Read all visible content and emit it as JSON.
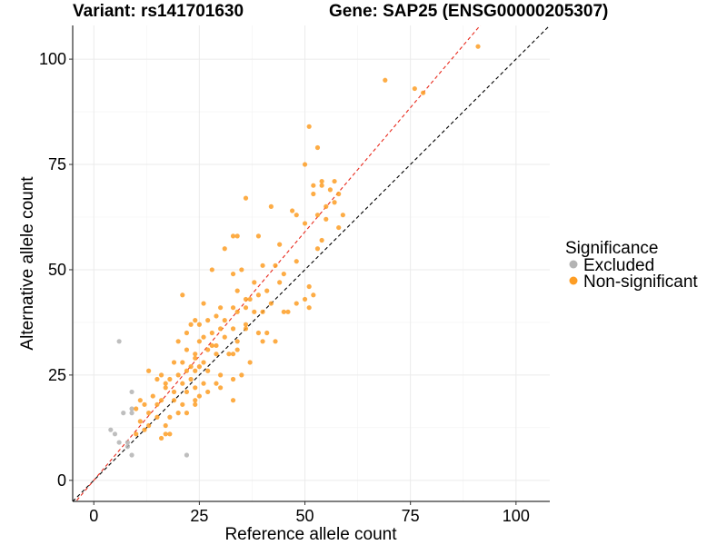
{
  "chart_data": {
    "type": "scatter",
    "title_left": "Variant: rs141701630",
    "title_right": "Gene: SAP25 (ENSG00000205307)",
    "xlabel": "Reference allele count",
    "ylabel": "Alternative allele count",
    "xlim": [
      -5,
      108
    ],
    "ylim": [
      -5,
      108
    ],
    "xticks": [
      0,
      25,
      50,
      75,
      100
    ],
    "yticks": [
      0,
      25,
      50,
      75,
      100
    ],
    "grid": true,
    "legend": {
      "title": "Significance",
      "position": "right",
      "entries": [
        {
          "label": "Excluded",
          "color": "#b3b3b3"
        },
        {
          "label": "Non-significant",
          "color": "#fd9d24"
        }
      ]
    },
    "reference_lines": [
      {
        "name": "identity",
        "slope": 1.0,
        "intercept": 0,
        "color": "#000000",
        "style": "dashed"
      },
      {
        "name": "fit",
        "slope": 1.18,
        "intercept": 0,
        "color": "#e8291c",
        "style": "dashed"
      }
    ],
    "series": [
      {
        "name": "Excluded",
        "color": "#b3b3b3",
        "points": [
          [
            6,
            33
          ],
          [
            4,
            12
          ],
          [
            5,
            11
          ],
          [
            7,
            16
          ],
          [
            8,
            8
          ],
          [
            9,
            21
          ],
          [
            9,
            17
          ],
          [
            9,
            16
          ],
          [
            6,
            9
          ],
          [
            8,
            9
          ],
          [
            9,
            6
          ],
          [
            22,
            6
          ]
        ]
      },
      {
        "name": "Non-significant",
        "color": "#fd9d24",
        "points": [
          [
            69,
            95
          ],
          [
            76,
            93
          ],
          [
            78,
            92
          ],
          [
            91,
            103
          ],
          [
            51,
            84
          ],
          [
            53,
            79
          ],
          [
            50,
            75
          ],
          [
            57,
            71
          ],
          [
            54,
            71
          ],
          [
            54,
            70
          ],
          [
            52,
            70
          ],
          [
            56,
            69
          ],
          [
            58,
            68
          ],
          [
            52,
            68
          ],
          [
            57,
            66
          ],
          [
            55,
            65
          ],
          [
            36,
            67
          ],
          [
            42,
            65
          ],
          [
            48,
            63
          ],
          [
            47,
            64
          ],
          [
            53,
            63
          ],
          [
            59,
            63
          ],
          [
            55,
            62
          ],
          [
            50,
            61
          ],
          [
            58,
            60
          ],
          [
            54,
            57
          ],
          [
            33,
            58
          ],
          [
            34,
            58
          ],
          [
            39,
            58
          ],
          [
            44,
            56
          ],
          [
            31,
            55
          ],
          [
            53,
            55
          ],
          [
            48,
            52
          ],
          [
            40,
            51
          ],
          [
            28,
            50
          ],
          [
            35,
            50
          ],
          [
            43,
            51
          ],
          [
            45,
            49
          ],
          [
            33,
            49
          ],
          [
            38,
            47
          ],
          [
            44,
            47
          ],
          [
            51,
            46
          ],
          [
            41,
            45
          ],
          [
            34,
            45
          ],
          [
            39,
            44
          ],
          [
            52,
            44
          ],
          [
            50,
            43
          ],
          [
            36,
            43
          ],
          [
            37,
            43
          ],
          [
            21,
            44
          ],
          [
            42,
            42
          ],
          [
            30,
            41
          ],
          [
            33,
            41
          ],
          [
            36,
            41
          ],
          [
            26,
            42
          ],
          [
            48,
            42
          ],
          [
            40,
            40
          ],
          [
            46,
            40
          ],
          [
            51,
            41
          ],
          [
            29,
            39
          ],
          [
            34,
            40
          ],
          [
            38,
            40
          ],
          [
            45,
            40
          ],
          [
            24,
            38
          ],
          [
            27,
            38
          ],
          [
            31,
            38
          ],
          [
            36,
            37
          ],
          [
            23,
            37
          ],
          [
            25,
            37
          ],
          [
            22,
            35
          ],
          [
            26,
            34
          ],
          [
            28,
            35
          ],
          [
            30,
            36
          ],
          [
            33,
            36
          ],
          [
            36,
            36
          ],
          [
            39,
            35
          ],
          [
            41,
            35
          ],
          [
            25,
            33
          ],
          [
            28,
            32
          ],
          [
            31,
            34
          ],
          [
            34,
            33
          ],
          [
            40,
            33
          ],
          [
            43,
            33
          ],
          [
            20,
            33
          ],
          [
            22,
            31
          ],
          [
            24,
            30
          ],
          [
            27,
            31
          ],
          [
            29,
            32
          ],
          [
            32,
            30
          ],
          [
            34,
            31
          ],
          [
            24,
            29
          ],
          [
            26,
            28
          ],
          [
            29,
            30
          ],
          [
            33,
            30
          ],
          [
            37,
            28
          ],
          [
            21,
            28
          ],
          [
            23,
            27
          ],
          [
            25,
            27
          ],
          [
            19,
            28
          ],
          [
            22,
            26
          ],
          [
            24,
            26
          ],
          [
            27,
            26
          ],
          [
            30,
            25
          ],
          [
            20,
            25
          ],
          [
            23,
            24
          ],
          [
            26,
            23
          ],
          [
            29,
            23
          ],
          [
            33,
            24
          ],
          [
            35,
            25
          ],
          [
            16,
            25
          ],
          [
            18,
            24
          ],
          [
            21,
            23
          ],
          [
            24,
            22
          ],
          [
            27,
            21
          ],
          [
            30,
            22
          ],
          [
            17,
            22
          ],
          [
            19,
            21
          ],
          [
            22,
            21
          ],
          [
            25,
            20
          ],
          [
            13,
            26
          ],
          [
            15,
            24
          ],
          [
            17,
            23
          ],
          [
            14,
            20
          ],
          [
            16,
            19
          ],
          [
            19,
            19
          ],
          [
            21,
            18
          ],
          [
            24,
            18
          ],
          [
            33,
            19
          ],
          [
            11,
            19
          ],
          [
            12,
            18
          ],
          [
            15,
            18
          ],
          [
            10,
            17
          ],
          [
            13,
            16
          ],
          [
            15,
            15
          ],
          [
            18,
            15
          ],
          [
            20,
            16
          ],
          [
            22,
            16
          ],
          [
            24,
            19
          ],
          [
            11,
            14
          ],
          [
            13,
            13
          ],
          [
            12,
            12
          ],
          [
            10,
            11
          ],
          [
            17,
            13
          ],
          [
            16,
            10
          ],
          [
            17,
            11
          ],
          [
            18,
            11
          ]
        ]
      }
    ]
  }
}
